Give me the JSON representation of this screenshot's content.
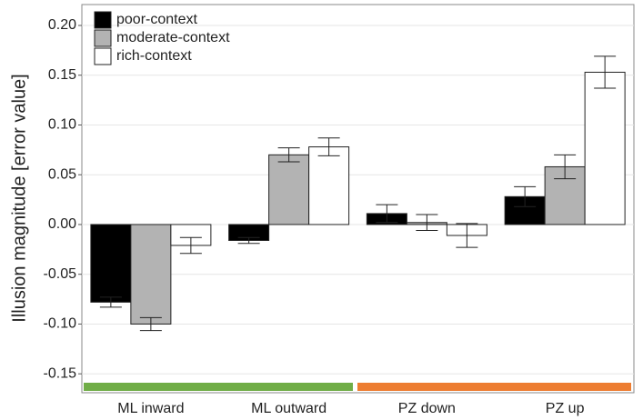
{
  "chart_data": {
    "type": "bar",
    "y_label": "Illusion magnitude [error value]",
    "categories": [
      "ML inward",
      "ML outward",
      "PZ down",
      "PZ up"
    ],
    "series": [
      {
        "name": "poor-context",
        "color": "#000000",
        "values": [
          -0.078,
          -0.016,
          0.011,
          0.028
        ],
        "errors": [
          0.005,
          0.003,
          0.009,
          0.01
        ]
      },
      {
        "name": "moderate-context",
        "color": "#b3b3b3",
        "values": [
          -0.1,
          0.07,
          0.002,
          0.058
        ],
        "errors": [
          0.0065,
          0.007,
          0.008,
          0.012
        ]
      },
      {
        "name": "rich-context",
        "color": "#ffffff",
        "values": [
          -0.021,
          0.078,
          -0.011,
          0.153
        ],
        "errors": [
          0.008,
          0.009,
          0.012,
          0.016
        ]
      }
    ],
    "ylim": [
      -0.169,
      0.221
    ],
    "yticks": [
      {
        "value": -0.15,
        "label": "-0.15"
      },
      {
        "value": -0.1,
        "label": "-0.10"
      },
      {
        "value": -0.05,
        "label": "-0.05"
      },
      {
        "value": 0,
        "label": "0.00"
      },
      {
        "value": 0.05,
        "label": "0.05"
      },
      {
        "value": 0.1,
        "label": "0.10"
      },
      {
        "value": 0.15,
        "label": "0.15"
      },
      {
        "value": 0.2,
        "label": "0.20"
      }
    ],
    "grid": true,
    "legend": "top-left"
  }
}
